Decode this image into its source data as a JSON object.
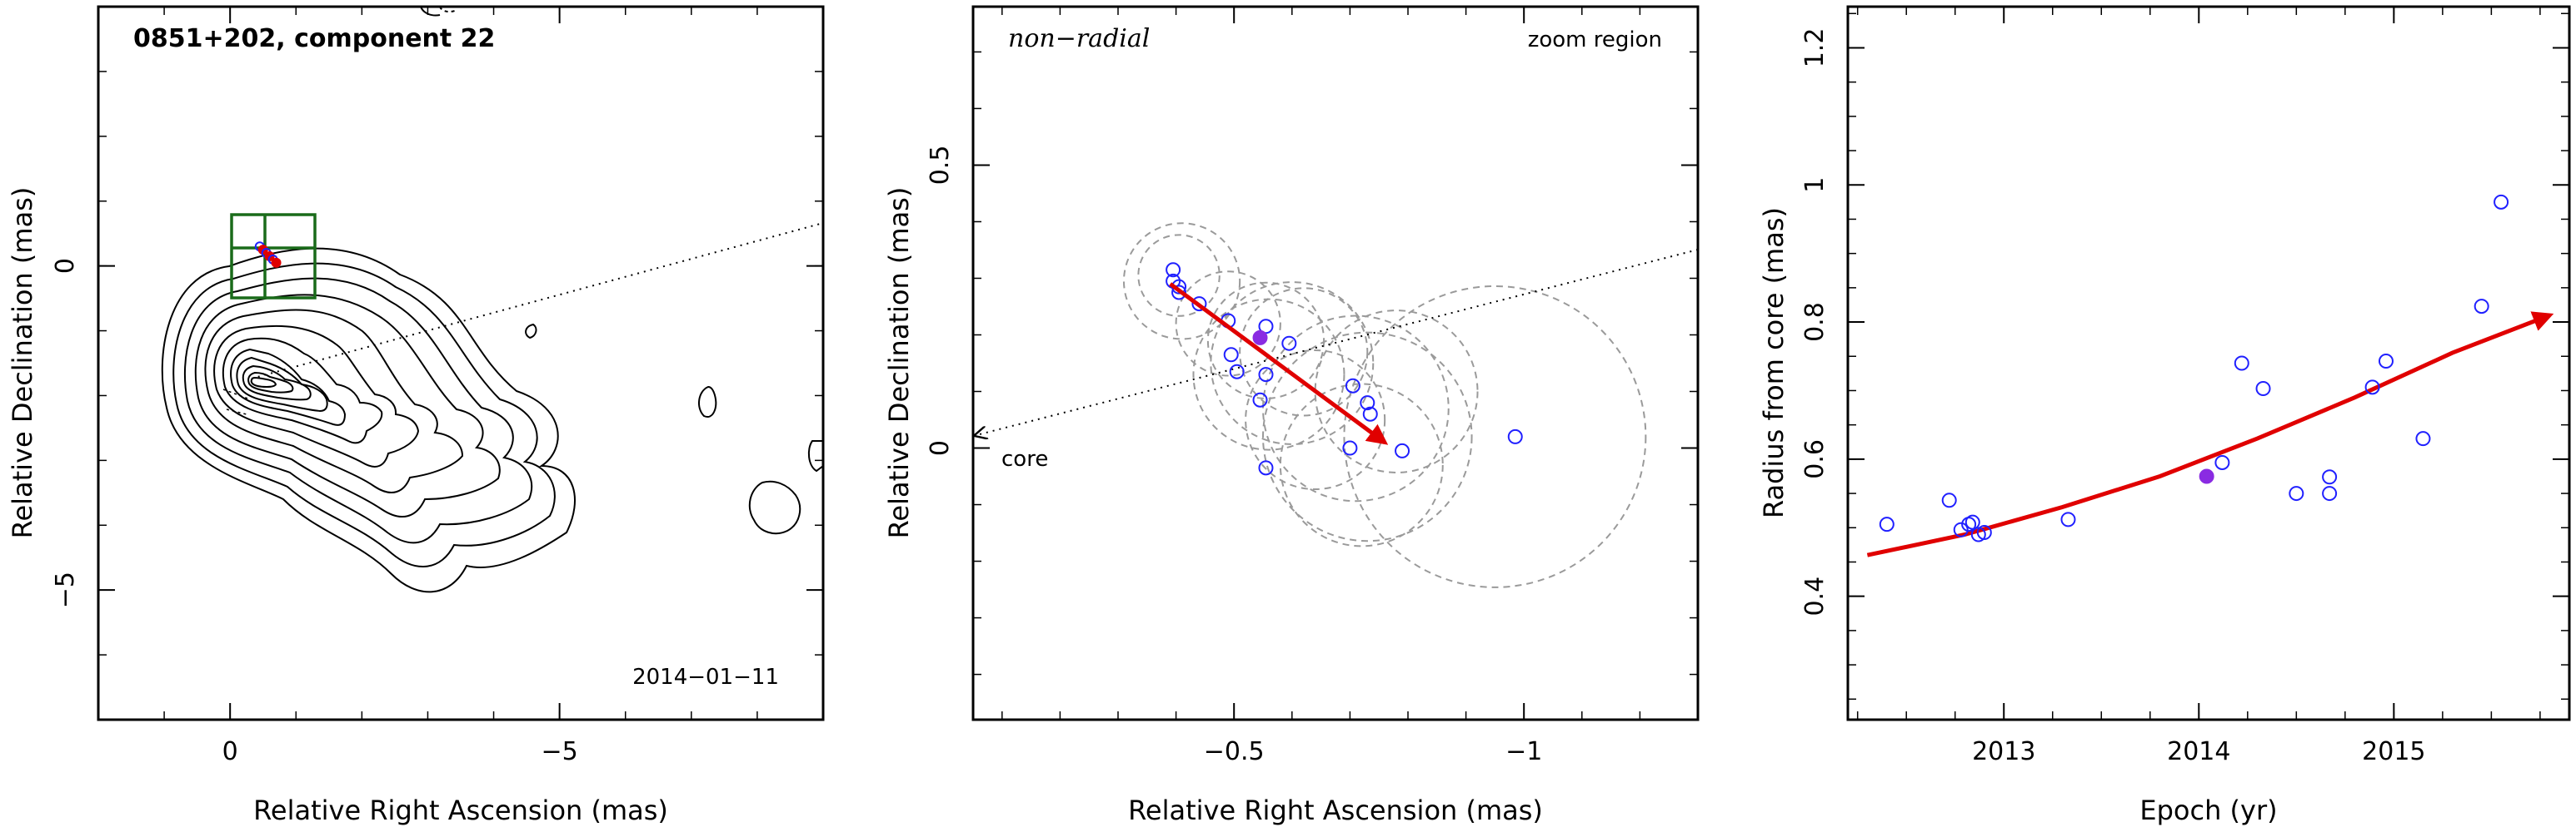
{
  "chart_data": [
    {
      "type": "contour",
      "title": "0851+202, component 22",
      "date_label": "2014−01−11",
      "xlabel": "Relative Right Ascension (mas)",
      "ylabel": "Relative Declination (mas)",
      "xlim": [
        2,
        -9
      ],
      "ylim": [
        -7,
        4
      ],
      "x_ticks": [
        {
          "value": 0,
          "label": "0"
        },
        {
          "value": -5,
          "label": "−5"
        }
      ],
      "y_ticks": [
        {
          "value": 0,
          "label": "0"
        },
        {
          "value": -5,
          "label": "−5"
        }
      ],
      "component_positions": [
        {
          "x": -0.45,
          "y": 0.3
        },
        {
          "x": -0.5,
          "y": 0.25
        },
        {
          "x": -0.55,
          "y": 0.2
        },
        {
          "x": -0.6,
          "y": 0.15
        },
        {
          "x": -0.65,
          "y": 0.1
        },
        {
          "x": -0.7,
          "y": 0.05
        }
      ]
    },
    {
      "type": "scatter",
      "annotations": {
        "mode": "non−radial",
        "region": "zoom region",
        "core": "core"
      },
      "xlabel": "Relative Right Ascension (mas)",
      "ylabel": "Relative Declination (mas)",
      "xlim": [
        -0.05,
        -1.3
      ],
      "ylim": [
        -0.48,
        0.78
      ],
      "x_ticks": [
        {
          "value": -0.5,
          "label": "−0.5"
        },
        {
          "value": -1,
          "label": "−1"
        }
      ],
      "y_ticks": [
        {
          "value": 0,
          "label": "0"
        },
        {
          "value": 0.5,
          "label": "0.5"
        }
      ],
      "points": [
        {
          "x": -0.395,
          "y": 0.315
        },
        {
          "x": -0.395,
          "y": 0.295
        },
        {
          "x": -0.405,
          "y": 0.285
        },
        {
          "x": -0.405,
          "y": 0.275
        },
        {
          "x": -0.44,
          "y": 0.255
        },
        {
          "x": -0.49,
          "y": 0.225
        },
        {
          "x": -0.555,
          "y": 0.215
        },
        {
          "x": -0.595,
          "y": 0.185
        },
        {
          "x": -0.495,
          "y": 0.165
        },
        {
          "x": -0.505,
          "y": 0.135
        },
        {
          "x": -0.555,
          "y": 0.13
        },
        {
          "x": -0.545,
          "y": 0.085
        },
        {
          "x": -0.705,
          "y": 0.11
        },
        {
          "x": -0.73,
          "y": 0.08
        },
        {
          "x": -0.735,
          "y": 0.06
        },
        {
          "x": -0.7,
          "y": 0.0
        },
        {
          "x": -0.79,
          "y": -0.005
        },
        {
          "x": -0.555,
          "y": -0.035
        },
        {
          "x": -0.985,
          "y": 0.02
        }
      ],
      "highlight_point": {
        "x": -0.545,
        "y": 0.195
      },
      "error_circles": [
        {
          "x": -0.405,
          "y": 0.305,
          "r": 0.07
        },
        {
          "x": -0.41,
          "y": 0.295,
          "r": 0.1
        },
        {
          "x": -0.49,
          "y": 0.22,
          "r": 0.09
        },
        {
          "x": -0.555,
          "y": 0.19,
          "r": 0.1
        },
        {
          "x": -0.56,
          "y": 0.13,
          "r": 0.13
        },
        {
          "x": -0.62,
          "y": 0.17,
          "r": 0.11
        },
        {
          "x": -0.6,
          "y": 0.15,
          "r": 0.14
        },
        {
          "x": -0.64,
          "y": 0.05,
          "r": 0.12
        },
        {
          "x": -0.71,
          "y": 0.07,
          "r": 0.16
        },
        {
          "x": -0.73,
          "y": 0.02,
          "r": 0.18
        },
        {
          "x": -0.78,
          "y": 0.1,
          "r": 0.14
        },
        {
          "x": -0.72,
          "y": -0.03,
          "r": 0.14
        },
        {
          "x": -0.95,
          "y": 0.02,
          "r": 0.26
        }
      ],
      "trend_arrow": {
        "from": {
          "x": -0.39,
          "y": 0.29
        },
        "to": {
          "x": -0.76,
          "y": 0.01
        }
      }
    },
    {
      "type": "scatter",
      "xlabel": "Epoch (yr)",
      "ylabel": "Radius from core (mas)",
      "xlim": [
        2012.2,
        2015.9
      ],
      "ylim": [
        0.22,
        1.26
      ],
      "x_ticks": [
        {
          "value": 2013,
          "label": "2013"
        },
        {
          "value": 2014,
          "label": "2014"
        },
        {
          "value": 2015,
          "label": "2015"
        }
      ],
      "y_ticks": [
        {
          "value": 0.4,
          "label": "0.4"
        },
        {
          "value": 0.6,
          "label": "0.6"
        },
        {
          "value": 0.8,
          "label": "0.8"
        },
        {
          "value": 1,
          "label": "1"
        },
        {
          "value": 1.2,
          "label": "1.2"
        }
      ],
      "points": [
        {
          "x": 2012.4,
          "y": 0.505
        },
        {
          "x": 2012.72,
          "y": 0.54
        },
        {
          "x": 2012.78,
          "y": 0.497
        },
        {
          "x": 2012.82,
          "y": 0.505
        },
        {
          "x": 2012.84,
          "y": 0.508
        },
        {
          "x": 2012.87,
          "y": 0.49
        },
        {
          "x": 2012.9,
          "y": 0.493
        },
        {
          "x": 2013.33,
          "y": 0.512
        },
        {
          "x": 2014.12,
          "y": 0.595
        },
        {
          "x": 2014.22,
          "y": 0.74
        },
        {
          "x": 2014.33,
          "y": 0.703
        },
        {
          "x": 2014.5,
          "y": 0.55
        },
        {
          "x": 2014.67,
          "y": 0.55
        },
        {
          "x": 2014.67,
          "y": 0.574
        },
        {
          "x": 2014.89,
          "y": 0.705
        },
        {
          "x": 2014.96,
          "y": 0.743
        },
        {
          "x": 2015.15,
          "y": 0.63
        },
        {
          "x": 2015.45,
          "y": 0.823
        },
        {
          "x": 2015.55,
          "y": 0.975
        }
      ],
      "highlight_point": {
        "x": 2014.04,
        "y": 0.575
      },
      "trend_curve": [
        {
          "x": 2012.3,
          "y": 0.46
        },
        {
          "x": 2012.8,
          "y": 0.49
        },
        {
          "x": 2013.3,
          "y": 0.53
        },
        {
          "x": 2013.8,
          "y": 0.575
        },
        {
          "x": 2014.3,
          "y": 0.63
        },
        {
          "x": 2014.8,
          "y": 0.69
        },
        {
          "x": 2015.3,
          "y": 0.755
        },
        {
          "x": 2015.8,
          "y": 0.81
        }
      ]
    }
  ]
}
